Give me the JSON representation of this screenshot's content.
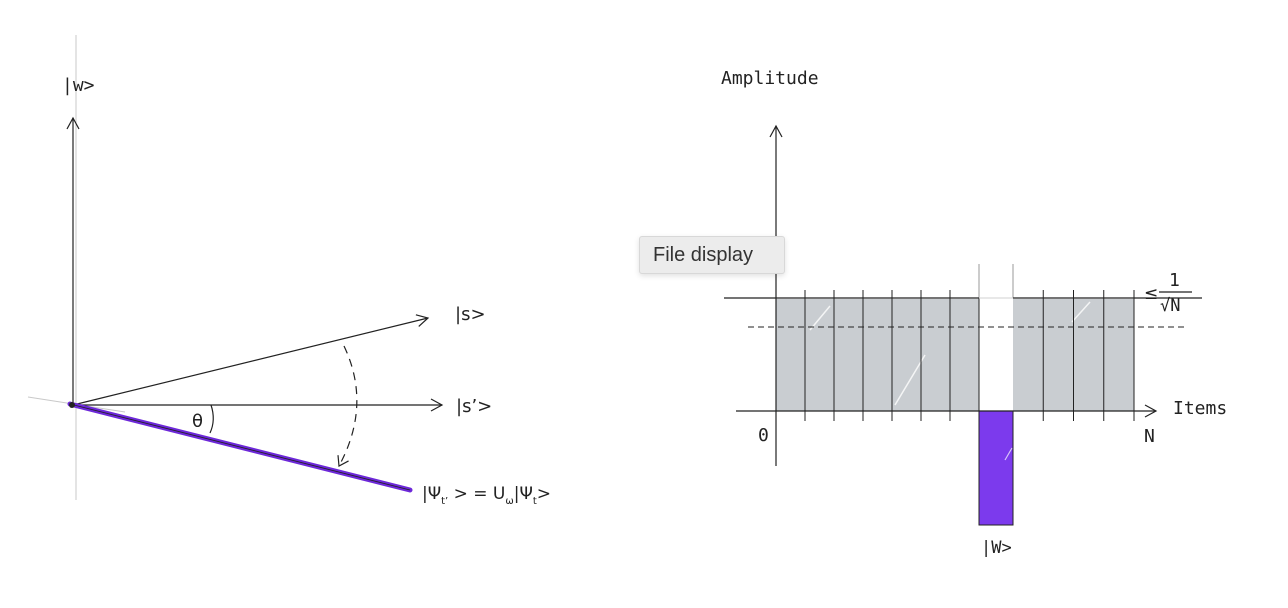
{
  "colors": {
    "ink": "#222222",
    "faint": "#b8b8b8",
    "accent": "#7c3aed",
    "bar": "#c9cdd1"
  },
  "left_diagram": {
    "label_w": "|w>",
    "label_s": "|s>",
    "label_s_prime": "|s’>",
    "label_theta": "θ",
    "state_equation": {
      "lhs_open": "|Ψ",
      "lhs_sub": "t’",
      "middle": " > = U",
      "u_sub": "ω",
      "rhs_open": "|Ψ",
      "rhs_sub": "t",
      "close": ">"
    }
  },
  "right_diagram": {
    "y_label": "Amplitude",
    "x_label": "Items",
    "origin_label": "0",
    "end_label": "N",
    "marked_label": "|W>",
    "level_prefix": "≤",
    "level_numerator": "1",
    "level_denominator": "√N",
    "bar_count_left": 7,
    "bar_count_right": 4,
    "uniform_amplitude_level": "1/√N",
    "marked_item_sign": "negative"
  },
  "tooltip": {
    "text": "File display"
  }
}
